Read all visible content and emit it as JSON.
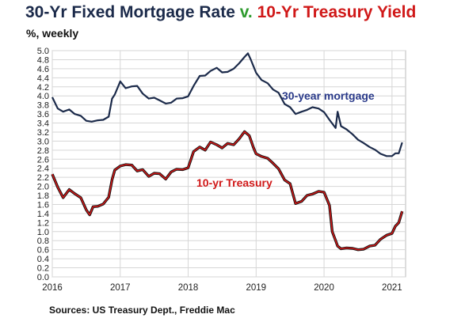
{
  "header": {
    "title_part1": "30-Yr Fixed Mortgage Rate",
    "title_sep": "v.",
    "title_part2": "10-Yr Treasury Yield",
    "subtitle": "%, weekly"
  },
  "footer": {
    "source": "Sources: US Treasury Dept., Freddie Mac"
  },
  "colors": {
    "mortgage": "#1b2a4a",
    "treasury": "#d01818",
    "treasury_shadow": "#111111",
    "sep": "#2e9b2e",
    "grid": "#d6d6d6"
  },
  "chart_data": {
    "type": "line",
    "title": "30-Yr Fixed Mortgage Rate v. 10-Yr Treasury Yield",
    "subtitle": "%, weekly",
    "ylim": [
      0,
      5.0
    ],
    "yticks": [
      0.0,
      0.2,
      0.4,
      0.6,
      0.8,
      1.0,
      1.2,
      1.4,
      1.6,
      1.8,
      2.0,
      2.2,
      2.4,
      2.6,
      2.8,
      3.0,
      3.2,
      3.4,
      3.6,
      3.8,
      4.0,
      4.2,
      4.4,
      4.6,
      4.8,
      5.0
    ],
    "ytick_labels": [
      "0.0",
      "0.2",
      "0.4",
      "0.6",
      "0.8",
      "1.0",
      "1.2",
      "1.4",
      "1.6",
      "1.8",
      "2.0",
      "2.2",
      "2.4",
      "2.6",
      "2.8",
      "3.0",
      "3.2",
      "3.4",
      "3.6",
      "3.8",
      "4.0",
      "4.2",
      "4.4",
      "4.6",
      "4.8",
      "5.0"
    ],
    "xlim": [
      2016.0,
      2021.2
    ],
    "xticks": [
      2016,
      2017,
      2018,
      2019,
      2020,
      2021
    ],
    "xtick_labels": [
      "2016",
      "2017",
      "2018",
      "2019",
      "2020",
      "2021"
    ],
    "grid": true,
    "series": [
      {
        "name": "30-year mortgage",
        "x": [
          2016.0,
          2016.08,
          2016.16,
          2016.25,
          2016.33,
          2016.42,
          2016.5,
          2016.58,
          2016.67,
          2016.75,
          2016.83,
          2016.88,
          2016.92,
          2017.0,
          2017.08,
          2017.17,
          2017.25,
          2017.33,
          2017.42,
          2017.5,
          2017.58,
          2017.67,
          2017.75,
          2017.83,
          2017.92,
          2018.0,
          2018.08,
          2018.17,
          2018.25,
          2018.33,
          2018.42,
          2018.5,
          2018.58,
          2018.67,
          2018.75,
          2018.83,
          2018.88,
          2018.92,
          2019.0,
          2019.08,
          2019.17,
          2019.25,
          2019.33,
          2019.42,
          2019.5,
          2019.58,
          2019.67,
          2019.75,
          2019.83,
          2019.92,
          2020.0,
          2020.08,
          2020.17,
          2020.2,
          2020.25,
          2020.33,
          2020.42,
          2020.5,
          2020.58,
          2020.67,
          2020.75,
          2020.83,
          2020.92,
          2021.0,
          2021.05,
          2021.1,
          2021.15
        ],
        "y": [
          3.97,
          3.72,
          3.65,
          3.7,
          3.6,
          3.56,
          3.45,
          3.43,
          3.46,
          3.47,
          3.54,
          3.94,
          4.03,
          4.32,
          4.17,
          4.21,
          4.22,
          4.05,
          3.94,
          3.96,
          3.9,
          3.83,
          3.85,
          3.94,
          3.95,
          3.99,
          4.22,
          4.44,
          4.45,
          4.55,
          4.62,
          4.52,
          4.53,
          4.6,
          4.72,
          4.86,
          4.94,
          4.81,
          4.51,
          4.35,
          4.28,
          4.14,
          4.07,
          3.82,
          3.75,
          3.6,
          3.65,
          3.69,
          3.75,
          3.72,
          3.64,
          3.47,
          3.29,
          3.65,
          3.33,
          3.26,
          3.15,
          3.03,
          2.96,
          2.87,
          2.81,
          2.72,
          2.67,
          2.67,
          2.73,
          2.73,
          2.97
        ]
      },
      {
        "name": "10-yr Treasury",
        "x": [
          2016.0,
          2016.08,
          2016.16,
          2016.25,
          2016.33,
          2016.42,
          2016.5,
          2016.55,
          2016.6,
          2016.67,
          2016.75,
          2016.83,
          2016.88,
          2016.92,
          2017.0,
          2017.08,
          2017.17,
          2017.25,
          2017.33,
          2017.42,
          2017.5,
          2017.58,
          2017.67,
          2017.75,
          2017.83,
          2017.92,
          2018.0,
          2018.08,
          2018.17,
          2018.25,
          2018.33,
          2018.42,
          2018.5,
          2018.58,
          2018.67,
          2018.75,
          2018.83,
          2018.9,
          2018.96,
          2019.0,
          2019.08,
          2019.17,
          2019.25,
          2019.33,
          2019.42,
          2019.5,
          2019.58,
          2019.67,
          2019.75,
          2019.83,
          2019.92,
          2020.0,
          2020.08,
          2020.12,
          2020.17,
          2020.2,
          2020.25,
          2020.33,
          2020.42,
          2020.5,
          2020.58,
          2020.67,
          2020.75,
          2020.83,
          2020.92,
          2021.0,
          2021.05,
          2021.1,
          2021.15
        ],
        "y": [
          2.27,
          1.98,
          1.75,
          1.93,
          1.84,
          1.75,
          1.48,
          1.37,
          1.55,
          1.56,
          1.61,
          1.76,
          2.15,
          2.36,
          2.45,
          2.48,
          2.47,
          2.34,
          2.37,
          2.22,
          2.29,
          2.28,
          2.16,
          2.32,
          2.38,
          2.37,
          2.41,
          2.77,
          2.87,
          2.8,
          2.98,
          2.92,
          2.85,
          2.95,
          2.92,
          3.05,
          3.21,
          3.12,
          2.86,
          2.72,
          2.66,
          2.62,
          2.51,
          2.39,
          2.14,
          2.06,
          1.62,
          1.67,
          1.8,
          1.83,
          1.89,
          1.87,
          1.58,
          1.0,
          0.8,
          0.68,
          0.62,
          0.64,
          0.63,
          0.6,
          0.61,
          0.68,
          0.7,
          0.83,
          0.92,
          0.96,
          1.12,
          1.2,
          1.45
        ]
      }
    ],
    "annotations": [
      "30-year mortgage",
      "10-yr Treasury"
    ]
  }
}
